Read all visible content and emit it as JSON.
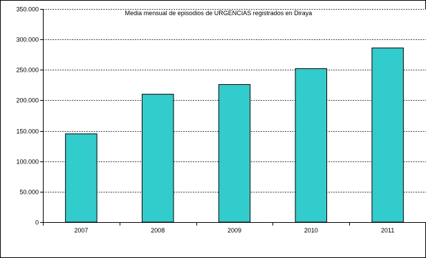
{
  "chart_data": {
    "type": "bar",
    "title": "Media mensual de episodios de URGENCIAS registrados en Diraya",
    "xlabel": "",
    "ylabel": "",
    "categories": [
      "2007",
      "2008",
      "2009",
      "2010",
      "2011"
    ],
    "values": [
      145000,
      210000,
      226000,
      252000,
      286000
    ],
    "ylim": [
      0,
      350000
    ],
    "yticks": [
      0,
      50000,
      100000,
      150000,
      200000,
      250000,
      300000,
      350000
    ],
    "ytick_labels": [
      "0",
      "50.000",
      "100.000",
      "150.000",
      "200.000",
      "250.000",
      "300.000",
      "350.000"
    ],
    "grid": true,
    "bar_color": "#33CCCC",
    "bar_edge_color": "#000000",
    "gridline_color": "#000000"
  }
}
